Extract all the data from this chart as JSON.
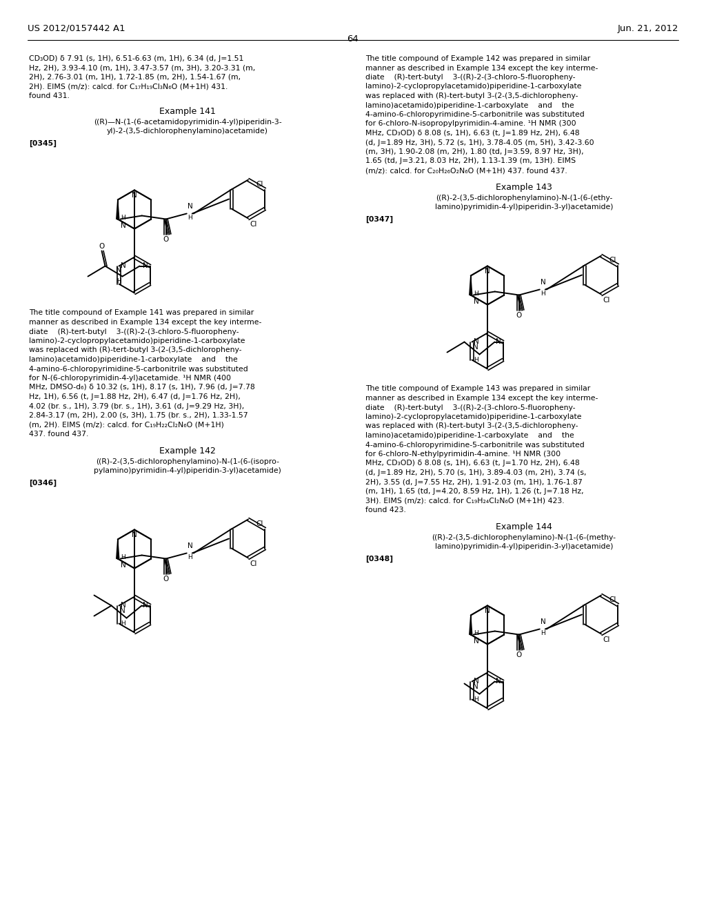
{
  "page_header_left": "US 2012/0157442 A1",
  "page_header_right": "Jun. 21, 2012",
  "page_number": "64",
  "background_color": "#ffffff",
  "text_color": "#000000",
  "left_col_para1_lines": [
    "CD₃OD) δ 7.91 (s, 1H), 6.51-6.63 (m, 1H), 6.34 (d, J=1.51",
    "Hz, 2H), 3.93-4.10 (m, 1H), 3.47-3.57 (m, 3H), 3.20-3.31 (m,",
    "2H), 2.76-3.01 (m, 1H), 1.72-1.85 (m, 2H), 1.54-1.67 (m,",
    "2H). EIMS (m/z): calcd. for C₁₇H₁₉Cl₃N₆O (M+1H) 431.",
    "found 431."
  ],
  "example141_title": "Example 141",
  "example141_name_lines": [
    "((R)—N-(1-(6-acetamidopyrimidin-4-yl)piperidin-3-",
    "yl)-2-(3,5-dichlorophenylamino)acetamide)"
  ],
  "example141_ref": "[0345]",
  "example141_body_lines": [
    "The title compound of Example 141 was prepared in similar",
    "manner as described in Example 134 except the key interme-",
    "diate    (R)-tert-butyl    3-((R)-2-(3-chloro-5-fluoropheny-",
    "lamino)-2-cyclopropylacetamido)piperidine-1-carboxylate",
    "was replaced with (R)-tert-butyl 3-(2-(3,5-dichloropheny-",
    "lamino)acetamido)piperidine-1-carboxylate    and    the",
    "4-amino-6-chloropyrimidine-5-carbonitrile was substituted",
    "for N-(6-chloropyrimidin-4-yl)acetamide. ¹H NMR (400",
    "MHz, DMSO-d₆) δ 10.32 (s, 1H), 8.17 (s, 1H), 7.96 (d, J=7.78",
    "Hz, 1H), 6.56 (t, J=1.88 Hz, 2H), 6.47 (d, J=1.76 Hz, 2H),",
    "4.02 (br. s., 1H), 3.79 (br. s., 1H), 3.61 (d, J=9.29 Hz, 3H),",
    "2.84-3.17 (m, 2H), 2.00 (s, 3H), 1.75 (br. s., 2H), 1.33-1.57",
    "(m, 2H). EIMS (m/z): calcd. for C₁₉H₂₂Cl₂N₆O (M+1H)",
    "437. found 437."
  ],
  "example142_title": "Example 142",
  "example142_name_lines": [
    "((R)-2-(3,5-dichlorophenylamino)-N-(1-(6-(isopro-",
    "pylamino)pyrimidin-4-yl)piperidin-3-yl)acetamide)"
  ],
  "example142_ref": "[0346]",
  "right_col_body142_lines": [
    "The title compound of Example 142 was prepared in similar",
    "manner as described in Example 134 except the key interme-",
    "diate    (R)-tert-butyl    3-((R)-2-(3-chloro-5-fluoropheny-",
    "lamino)-2-cyclopropylacetamido)piperidine-1-carboxylate",
    "was replaced with (R)-tert-butyl 3-(2-(3,5-dichloropheny-",
    "lamino)acetamido)piperidine-1-carboxylate    and    the",
    "4-amino-6-chloropyrimidine-5-carbonitrile was substituted",
    "for 6-chloro-N-isopropylpyrimidin-4-amine. ¹H NMR (300",
    "MHz, CD₃OD) δ 8.08 (s, 1H), 6.63 (t, J=1.89 Hz, 2H), 6.48",
    "(d, J=1.89 Hz, 3H), 5.72 (s, 1H), 3.78-4.05 (m, 5H), 3.42-3.60",
    "(m, 3H), 1.90-2.08 (m, 2H), 1.80 (td, J=3.59, 8.97 Hz, 3H),",
    "1.65 (td, J=3.21, 8.03 Hz, 2H), 1.13-1.39 (m, 13H). EIMS",
    "(m/z): calcd. for C₂₀H₂₆O₂N₆O (M+1H) 437. found 437."
  ],
  "example143_title": "Example 143",
  "example143_name_lines": [
    "((R)-2-(3,5-dichlorophenylamino)-N-(1-(6-(ethy-",
    "lamino)pyrimidin-4-yl)piperidin-3-yl)acetamide)"
  ],
  "example143_ref": "[0347]",
  "example143_body_lines": [
    "The title compound of Example 143 was prepared in similar",
    "manner as described in Example 134 except the key interme-",
    "diate    (R)-tert-butyl    3-((R)-2-(3-chloro-5-fluoropheny-",
    "lamino)-2-cyclopropylacetamido)piperidine-1-carboxylate",
    "was replaced with (R)-tert-butyl 3-(2-(3,5-dichloropheny-",
    "lamino)acetamido)piperidine-1-carboxylate    and    the",
    "4-amino-6-chloropyrimidine-5-carbonitrile was substituted",
    "for 6-chloro-N-ethylpyrimidin-4-amine. ¹H NMR (300",
    "MHz, CD₃OD) δ 8.08 (s, 1H), 6.63 (t, J=1.70 Hz, 2H), 6.48",
    "(d, J=1.89 Hz, 2H), 5.70 (s, 1H), 3.89-4.03 (m, 2H), 3.74 (s,",
    "2H), 3.55 (d, J=7.55 Hz, 2H), 1.91-2.03 (m, 1H), 1.76-1.87",
    "(m, 1H), 1.65 (td, J=4.20, 8.59 Hz, 1H), 1.26 (t, J=7.18 Hz,",
    "3H). EIMS (m/z): calcd. for C₁₉H₂₄Cl₂N₆O (M+1H) 423.",
    "found 423."
  ],
  "example144_title": "Example 144",
  "example144_name_lines": [
    "((R)-2-(3,5-dichlorophenylamino)-N-(1-(6-(methy-",
    "lamino)pyrimidin-4-yl)piperidin-3-yl)acetamide)"
  ],
  "example144_ref": "[0348]"
}
